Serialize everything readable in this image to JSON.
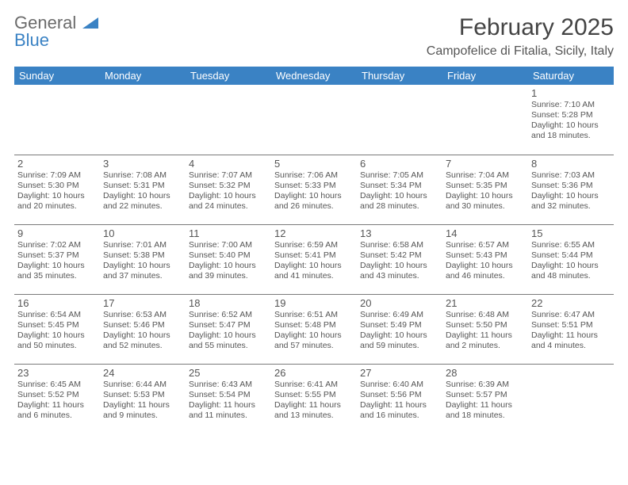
{
  "brand": {
    "line1": "General",
    "line2": "Blue"
  },
  "title": {
    "month": "February 2025",
    "location": "Campofelice di Fitalia, Sicily, Italy"
  },
  "colors": {
    "header_bg": "#3a82c4",
    "header_text": "#ffffff",
    "text": "#555555",
    "rule": "#7a7a7a",
    "background": "#ffffff"
  },
  "weekdays": [
    "Sunday",
    "Monday",
    "Tuesday",
    "Wednesday",
    "Thursday",
    "Friday",
    "Saturday"
  ],
  "weeks": [
    [
      null,
      null,
      null,
      null,
      null,
      null,
      {
        "n": "1",
        "sr": "Sunrise: 7:10 AM",
        "ss": "Sunset: 5:28 PM",
        "dl": "Daylight: 10 hours and 18 minutes."
      }
    ],
    [
      {
        "n": "2",
        "sr": "Sunrise: 7:09 AM",
        "ss": "Sunset: 5:30 PM",
        "dl": "Daylight: 10 hours and 20 minutes."
      },
      {
        "n": "3",
        "sr": "Sunrise: 7:08 AM",
        "ss": "Sunset: 5:31 PM",
        "dl": "Daylight: 10 hours and 22 minutes."
      },
      {
        "n": "4",
        "sr": "Sunrise: 7:07 AM",
        "ss": "Sunset: 5:32 PM",
        "dl": "Daylight: 10 hours and 24 minutes."
      },
      {
        "n": "5",
        "sr": "Sunrise: 7:06 AM",
        "ss": "Sunset: 5:33 PM",
        "dl": "Daylight: 10 hours and 26 minutes."
      },
      {
        "n": "6",
        "sr": "Sunrise: 7:05 AM",
        "ss": "Sunset: 5:34 PM",
        "dl": "Daylight: 10 hours and 28 minutes."
      },
      {
        "n": "7",
        "sr": "Sunrise: 7:04 AM",
        "ss": "Sunset: 5:35 PM",
        "dl": "Daylight: 10 hours and 30 minutes."
      },
      {
        "n": "8",
        "sr": "Sunrise: 7:03 AM",
        "ss": "Sunset: 5:36 PM",
        "dl": "Daylight: 10 hours and 32 minutes."
      }
    ],
    [
      {
        "n": "9",
        "sr": "Sunrise: 7:02 AM",
        "ss": "Sunset: 5:37 PM",
        "dl": "Daylight: 10 hours and 35 minutes."
      },
      {
        "n": "10",
        "sr": "Sunrise: 7:01 AM",
        "ss": "Sunset: 5:38 PM",
        "dl": "Daylight: 10 hours and 37 minutes."
      },
      {
        "n": "11",
        "sr": "Sunrise: 7:00 AM",
        "ss": "Sunset: 5:40 PM",
        "dl": "Daylight: 10 hours and 39 minutes."
      },
      {
        "n": "12",
        "sr": "Sunrise: 6:59 AM",
        "ss": "Sunset: 5:41 PM",
        "dl": "Daylight: 10 hours and 41 minutes."
      },
      {
        "n": "13",
        "sr": "Sunrise: 6:58 AM",
        "ss": "Sunset: 5:42 PM",
        "dl": "Daylight: 10 hours and 43 minutes."
      },
      {
        "n": "14",
        "sr": "Sunrise: 6:57 AM",
        "ss": "Sunset: 5:43 PM",
        "dl": "Daylight: 10 hours and 46 minutes."
      },
      {
        "n": "15",
        "sr": "Sunrise: 6:55 AM",
        "ss": "Sunset: 5:44 PM",
        "dl": "Daylight: 10 hours and 48 minutes."
      }
    ],
    [
      {
        "n": "16",
        "sr": "Sunrise: 6:54 AM",
        "ss": "Sunset: 5:45 PM",
        "dl": "Daylight: 10 hours and 50 minutes."
      },
      {
        "n": "17",
        "sr": "Sunrise: 6:53 AM",
        "ss": "Sunset: 5:46 PM",
        "dl": "Daylight: 10 hours and 52 minutes."
      },
      {
        "n": "18",
        "sr": "Sunrise: 6:52 AM",
        "ss": "Sunset: 5:47 PM",
        "dl": "Daylight: 10 hours and 55 minutes."
      },
      {
        "n": "19",
        "sr": "Sunrise: 6:51 AM",
        "ss": "Sunset: 5:48 PM",
        "dl": "Daylight: 10 hours and 57 minutes."
      },
      {
        "n": "20",
        "sr": "Sunrise: 6:49 AM",
        "ss": "Sunset: 5:49 PM",
        "dl": "Daylight: 10 hours and 59 minutes."
      },
      {
        "n": "21",
        "sr": "Sunrise: 6:48 AM",
        "ss": "Sunset: 5:50 PM",
        "dl": "Daylight: 11 hours and 2 minutes."
      },
      {
        "n": "22",
        "sr": "Sunrise: 6:47 AM",
        "ss": "Sunset: 5:51 PM",
        "dl": "Daylight: 11 hours and 4 minutes."
      }
    ],
    [
      {
        "n": "23",
        "sr": "Sunrise: 6:45 AM",
        "ss": "Sunset: 5:52 PM",
        "dl": "Daylight: 11 hours and 6 minutes."
      },
      {
        "n": "24",
        "sr": "Sunrise: 6:44 AM",
        "ss": "Sunset: 5:53 PM",
        "dl": "Daylight: 11 hours and 9 minutes."
      },
      {
        "n": "25",
        "sr": "Sunrise: 6:43 AM",
        "ss": "Sunset: 5:54 PM",
        "dl": "Daylight: 11 hours and 11 minutes."
      },
      {
        "n": "26",
        "sr": "Sunrise: 6:41 AM",
        "ss": "Sunset: 5:55 PM",
        "dl": "Daylight: 11 hours and 13 minutes."
      },
      {
        "n": "27",
        "sr": "Sunrise: 6:40 AM",
        "ss": "Sunset: 5:56 PM",
        "dl": "Daylight: 11 hours and 16 minutes."
      },
      {
        "n": "28",
        "sr": "Sunrise: 6:39 AM",
        "ss": "Sunset: 5:57 PM",
        "dl": "Daylight: 11 hours and 18 minutes."
      },
      null
    ]
  ]
}
